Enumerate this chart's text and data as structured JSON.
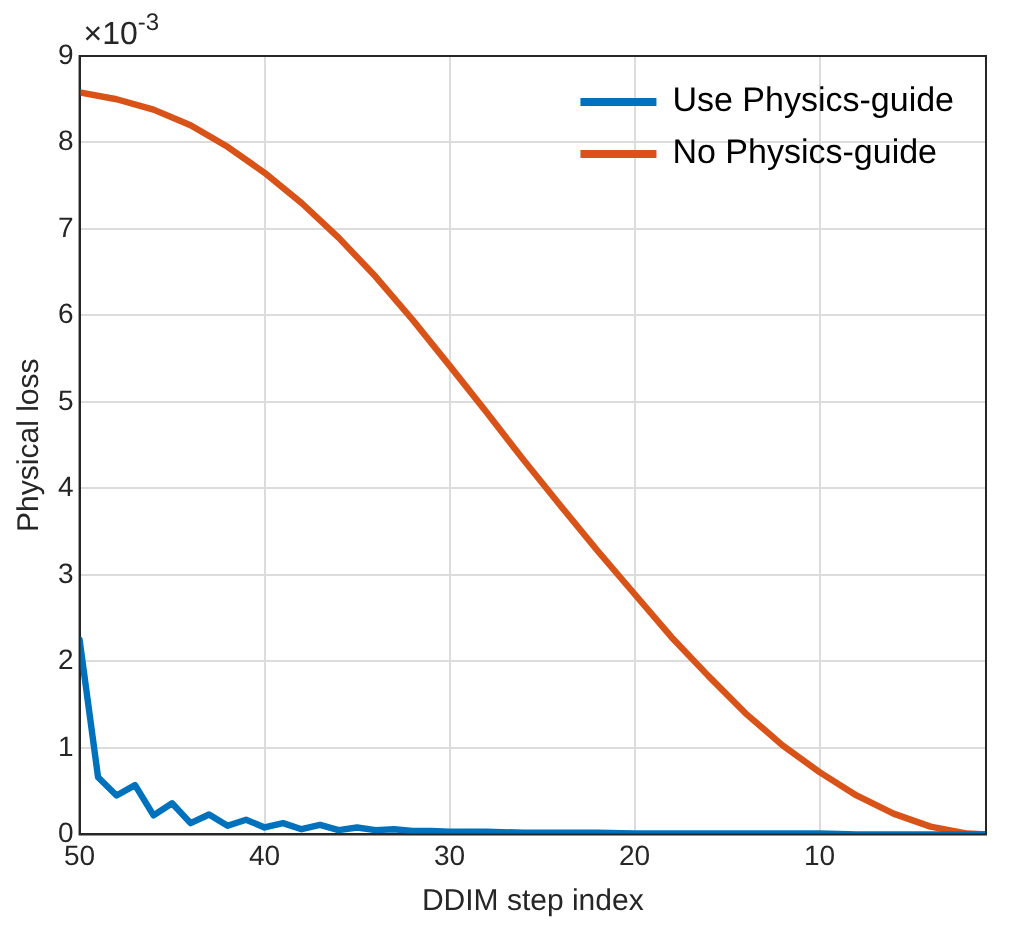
{
  "chart_data": {
    "type": "line",
    "xlabel": "DDIM step index",
    "ylabel": "Physical loss",
    "annotations": [
      "×10$^{-3}$"
    ],
    "x": [
      50,
      49,
      48,
      47,
      46,
      45,
      44,
      43,
      42,
      41,
      40,
      39,
      38,
      37,
      36,
      35,
      34,
      33,
      32,
      31,
      30,
      28,
      26,
      24,
      22,
      20,
      18,
      16,
      14,
      12,
      10,
      8,
      6,
      4,
      2,
      1
    ],
    "series": [
      {
        "name": "Use Physics-guide",
        "color": "#0072bd",
        "values": [
          2.25,
          0.66,
          0.45,
          0.57,
          0.22,
          0.36,
          0.13,
          0.23,
          0.1,
          0.17,
          0.08,
          0.13,
          0.06,
          0.11,
          0.05,
          0.08,
          0.05,
          0.06,
          0.04,
          0.04,
          0.03,
          0.03,
          0.02,
          0.02,
          0.02,
          0.01,
          0.01,
          0.01,
          0.01,
          0.01,
          0.01,
          0,
          0,
          0,
          0,
          0
        ]
      },
      {
        "name": "No Physics-guide",
        "color": "#d95319",
        "values": [
          8.58,
          null,
          8.5,
          null,
          8.38,
          null,
          8.2,
          null,
          7.95,
          null,
          7.65,
          null,
          7.3,
          null,
          6.9,
          null,
          6.45,
          null,
          5.95,
          null,
          5.42,
          4.88,
          4.33,
          3.8,
          3.28,
          2.78,
          2.28,
          1.83,
          1.4,
          1.03,
          0.72,
          0.45,
          0.24,
          0.09,
          0.01,
          0
        ]
      }
    ],
    "xlim": [
      50,
      1
    ],
    "xticks": [
      50,
      40,
      30,
      20,
      10
    ],
    "ylim": [
      0,
      9
    ],
    "yticks": [
      0,
      1,
      2,
      3,
      4,
      5,
      6,
      7,
      8,
      9
    ],
    "grid": true,
    "legend": "top right",
    "marker": "none",
    "line_style": "solid"
  }
}
